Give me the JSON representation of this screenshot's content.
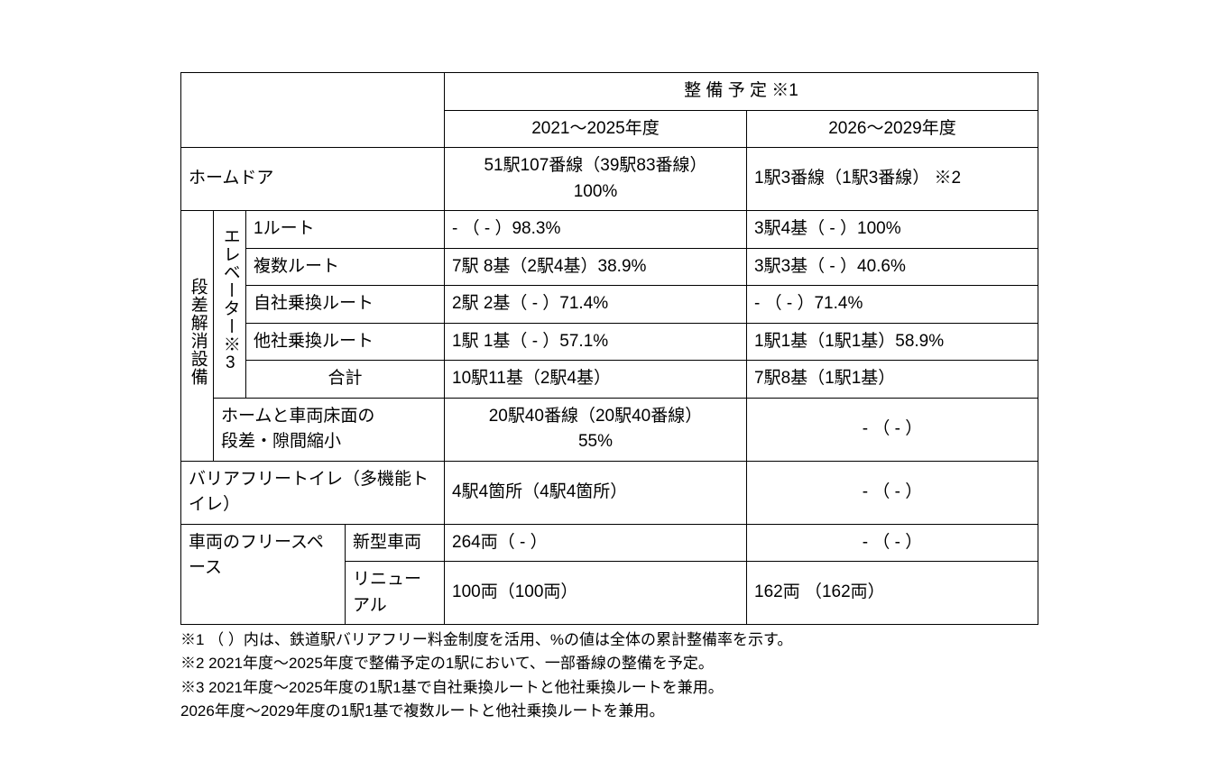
{
  "header": {
    "schedule": "整 備 予 定 ※1",
    "period1": "2021～2025年度",
    "period2": "2026～2029年度"
  },
  "rows": {
    "homeDoor": {
      "label": "ホームドア",
      "p1": "51駅107番線（39駅83番線）\n100%",
      "p2": "1駅3番線（1駅3番線） ※2"
    },
    "stepGroup": "段差解消設備",
    "elevGroup": "エレベーター※3",
    "elev": {
      "r1": {
        "label": "1ルート",
        "p1": "   -      （   -   ）98.3%",
        "p2": "3駅4基（   -   ）100%"
      },
      "r2": {
        "label": "複数ルート",
        "p1": "7駅 8基（2駅4基）38.9%",
        "p2": "3駅3基（   -   ）40.6%"
      },
      "r3": {
        "label": "自社乗換ルート",
        "p1": "2駅 2基（   -   ）71.4%",
        "p2": "   -     （  -   ）71.4%"
      },
      "r4": {
        "label": "他社乗換ルート",
        "p1": "1駅 1基（   -   ）57.1%",
        "p2": "1駅1基（1駅1基）58.9%"
      },
      "total": {
        "label": "合計",
        "p1": "10駅11基（2駅4基）",
        "p2": "7駅8基（1駅1基）"
      }
    },
    "gap": {
      "label": "ホームと車両床面の\n段差・隙間縮小",
      "p1": "20駅40番線（20駅40番線）\n55%",
      "p2": "   -       （   -   ）"
    },
    "toilet": {
      "label": "バリアフリートイレ（多機能トイレ）",
      "p1": "4駅4箇所（4駅4箇所）",
      "p2": "   -       （   -   ）"
    },
    "freespaceGroup": "車両のフリースペース",
    "freespace": {
      "new": {
        "label": "新型車両",
        "p1": "264両（  -  ）",
        "p2": "   -      （   -   ）"
      },
      "renew": {
        "label": "リニューアル",
        "p1": "100両（100両）",
        "p2": "162両 （162両）"
      }
    }
  },
  "notes": {
    "n1": "※1 （ ）内は、鉄道駅バリアフリー料金制度を活用、%の値は全体の累計整備率を示す。",
    "n2": "※2  2021年度～2025年度で整備予定の1駅において、一部番線の整備を予定。",
    "n3a": "※3  2021年度～2025年度の1駅1基で自社乗換ルートと他社乗換ルートを兼用。",
    "n3b": "       2026年度～2029年度の1駅1基で複数ルートと他社乗換ルートを兼用。"
  }
}
